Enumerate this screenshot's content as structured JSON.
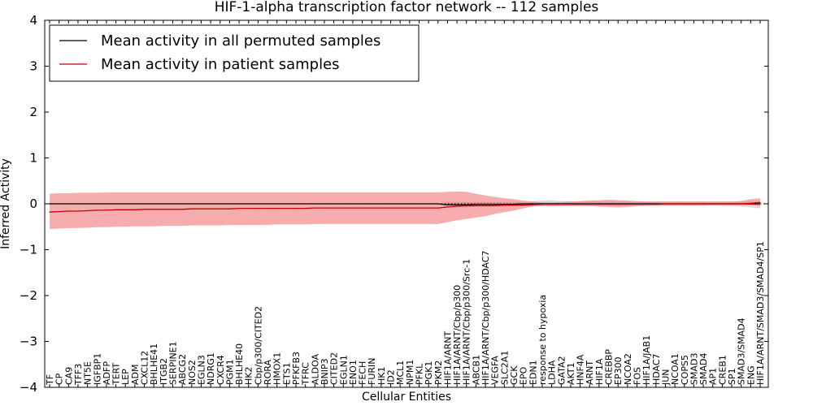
{
  "chart_data": {
    "type": "line",
    "title": "HIF-1-alpha transcription factor network -- 112 samples",
    "xlabel": "Cellular Entities",
    "ylabel": "Inferred Activity",
    "ylim": [
      -4,
      4
    ],
    "yticks": [
      4,
      3,
      2,
      1,
      0,
      -1,
      -2,
      -3,
      -4
    ],
    "ytick_labels": [
      "4",
      "3",
      "2",
      "1",
      "0",
      "−1",
      "−2",
      "−3",
      "−4"
    ],
    "grid": false,
    "legend_position": "top-left",
    "reference_line": {
      "y": 0,
      "style": "dotted",
      "color": "#000000"
    },
    "categories": [
      "TF",
      "CP",
      "CA9",
      "TFF3",
      "NT5E",
      "IGFBP1",
      "ADFP",
      "TERT",
      "LEP",
      "ADM",
      "CXCL12",
      "BHLHE41",
      "ITGB2",
      "SERPINE1",
      "ABCG2",
      "NOS2",
      "EGLN3",
      "NDRG1",
      "CXCR4",
      "PGM1",
      "BHLHE40",
      "HK2",
      "Cbp/p300/CITED2",
      "RORA",
      "HMOX1",
      "ETS1",
      "PFKFB3",
      "TFRC",
      "ALDOA",
      "BNIP3",
      "CITED2",
      "EGLN1",
      "ENO1",
      "FECH",
      "FURIN",
      "HK1",
      "ID2",
      "MCL1",
      "NPM1",
      "PFKL",
      "PGK1",
      "PKM2",
      "HIF1A/ARNT",
      "HIF1A/ARNT/Cbp/p300",
      "HIF1A/ARNT/Cbp/p300/Src-1",
      "ABCB1",
      "HIF1A/ARNT/Cbp/p300/HDAC7",
      "VEGFA",
      "SLC2A1",
      "GCK",
      "EPO",
      "EDN1",
      "response to hypoxia",
      "LDHA",
      "GATA2",
      "AKT1",
      "HNF4A",
      "ARNT",
      "HIF1A",
      "CREBBP",
      "EP300",
      "NCOA2",
      "FOS",
      "HIF1A/JAB1",
      "HDAC7",
      "JUN",
      "NCOA1",
      "COPS5",
      "SMAD3",
      "SMAD4",
      "AP1",
      "CREB1",
      "SP1",
      "SMAD3/SMAD4",
      "ENG",
      "HIF1A/ARNT/SMAD3/SMAD4/SP1"
    ],
    "series": [
      {
        "name": "Mean activity in all permuted samples",
        "color": "#000000",
        "values": [
          0,
          0,
          0,
          0,
          0,
          0,
          0,
          0,
          0,
          0,
          0,
          0,
          0,
          0,
          0,
          0,
          0,
          0,
          0,
          0,
          0,
          0,
          0,
          0,
          0,
          0,
          0,
          0,
          0,
          0,
          0,
          0,
          0,
          0,
          0,
          0,
          0,
          0,
          0,
          0,
          0,
          0,
          -0.02,
          -0.02,
          -0.02,
          -0.01,
          -0.01,
          -0.01,
          -0.01,
          -0.01,
          0,
          0,
          0,
          0,
          0,
          0,
          0,
          0,
          0,
          0,
          0,
          0,
          0,
          0,
          0,
          0,
          0,
          0,
          0,
          0,
          0,
          0,
          0,
          0,
          0,
          0
        ],
        "band_lower": [
          0,
          0,
          0,
          0,
          0,
          0,
          0,
          0,
          0,
          0,
          0,
          0,
          0,
          0,
          0,
          0,
          0,
          0,
          0,
          0,
          0,
          0,
          0,
          0,
          0,
          0,
          0,
          0,
          0,
          0,
          0,
          0,
          0,
          0,
          0,
          0,
          0,
          0,
          0,
          0,
          0,
          0,
          -0.08,
          -0.08,
          -0.08,
          -0.06,
          -0.06,
          -0.05,
          -0.05,
          -0.05,
          -0.04,
          -0.03,
          -0.05,
          -0.06,
          -0.05,
          -0.04,
          -0.04,
          -0.04,
          -0.04,
          -0.04,
          -0.04,
          -0.04,
          -0.04,
          -0.04,
          -0.04,
          -0.04,
          -0.04,
          -0.04,
          -0.04,
          -0.04,
          -0.04,
          -0.05,
          -0.05,
          -0.06,
          -0.08,
          -0.1
        ],
        "band_upper": [
          0,
          0,
          0,
          0,
          0,
          0,
          0,
          0,
          0,
          0,
          0,
          0,
          0,
          0,
          0,
          0,
          0,
          0,
          0,
          0,
          0,
          0,
          0,
          0,
          0,
          0,
          0,
          0,
          0,
          0,
          0,
          0,
          0,
          0,
          0,
          0,
          0,
          0,
          0,
          0,
          0,
          0,
          0.04,
          0.04,
          0.04,
          0.04,
          0.04,
          0.04,
          0.04,
          0.04,
          0.04,
          0.05,
          0.07,
          0.08,
          0.06,
          0.05,
          0.05,
          0.05,
          0.05,
          0.05,
          0.05,
          0.05,
          0.05,
          0.05,
          0.05,
          0.05,
          0.05,
          0.05,
          0.05,
          0.05,
          0.05,
          0.05,
          0.05,
          0.05,
          0.05,
          0.05
        ]
      },
      {
        "name": "Mean activity in patient samples",
        "color": "#cc0000",
        "values": [
          -0.18,
          -0.17,
          -0.16,
          -0.16,
          -0.15,
          -0.14,
          -0.14,
          -0.13,
          -0.13,
          -0.13,
          -0.12,
          -0.12,
          -0.12,
          -0.12,
          -0.12,
          -0.11,
          -0.11,
          -0.11,
          -0.11,
          -0.11,
          -0.1,
          -0.1,
          -0.1,
          -0.1,
          -0.1,
          -0.1,
          -0.1,
          -0.1,
          -0.09,
          -0.09,
          -0.09,
          -0.09,
          -0.09,
          -0.09,
          -0.09,
          -0.09,
          -0.09,
          -0.09,
          -0.09,
          -0.09,
          -0.09,
          -0.09,
          -0.07,
          -0.05,
          -0.04,
          -0.04,
          -0.04,
          -0.04,
          -0.03,
          -0.03,
          -0.03,
          -0.02,
          -0.01,
          -0.01,
          -0.01,
          -0.01,
          -0.01,
          -0.01,
          -0.01,
          -0.01,
          -0.01,
          -0.01,
          -0.01,
          -0.01,
          -0.01,
          0,
          0,
          0,
          0,
          0,
          0,
          0,
          0,
          0,
          0.01,
          0.03
        ],
        "band_lower": [
          -0.55,
          -0.54,
          -0.53,
          -0.53,
          -0.52,
          -0.51,
          -0.51,
          -0.5,
          -0.5,
          -0.49,
          -0.49,
          -0.49,
          -0.48,
          -0.48,
          -0.48,
          -0.47,
          -0.47,
          -0.47,
          -0.47,
          -0.46,
          -0.46,
          -0.46,
          -0.46,
          -0.46,
          -0.45,
          -0.45,
          -0.45,
          -0.45,
          -0.44,
          -0.44,
          -0.44,
          -0.44,
          -0.44,
          -0.44,
          -0.44,
          -0.44,
          -0.44,
          -0.44,
          -0.44,
          -0.44,
          -0.44,
          -0.44,
          -0.4,
          -0.36,
          -0.33,
          -0.3,
          -0.27,
          -0.22,
          -0.18,
          -0.15,
          -0.1,
          -0.06,
          -0.05,
          -0.05,
          -0.05,
          -0.05,
          -0.05,
          -0.05,
          -0.06,
          -0.07,
          -0.08,
          -0.07,
          -0.05,
          -0.04,
          -0.04,
          -0.04,
          -0.04,
          -0.04,
          -0.04,
          -0.04,
          -0.03,
          -0.03,
          -0.03,
          -0.03,
          -0.03,
          -0.05
        ],
        "band_upper": [
          0.22,
          0.23,
          0.23,
          0.24,
          0.24,
          0.24,
          0.25,
          0.25,
          0.25,
          0.25,
          0.25,
          0.25,
          0.25,
          0.25,
          0.25,
          0.25,
          0.25,
          0.25,
          0.25,
          0.25,
          0.25,
          0.25,
          0.25,
          0.25,
          0.25,
          0.25,
          0.25,
          0.25,
          0.25,
          0.25,
          0.25,
          0.25,
          0.25,
          0.25,
          0.25,
          0.25,
          0.25,
          0.25,
          0.25,
          0.25,
          0.25,
          0.25,
          0.26,
          0.27,
          0.26,
          0.22,
          0.18,
          0.15,
          0.12,
          0.1,
          0.07,
          0.05,
          0.03,
          0.03,
          0.04,
          0.05,
          0.06,
          0.07,
          0.08,
          0.09,
          0.08,
          0.07,
          0.06,
          0.05,
          0.05,
          0.05,
          0.05,
          0.05,
          0.05,
          0.05,
          0.05,
          0.05,
          0.05,
          0.06,
          0.1,
          0.12
        ]
      }
    ]
  }
}
